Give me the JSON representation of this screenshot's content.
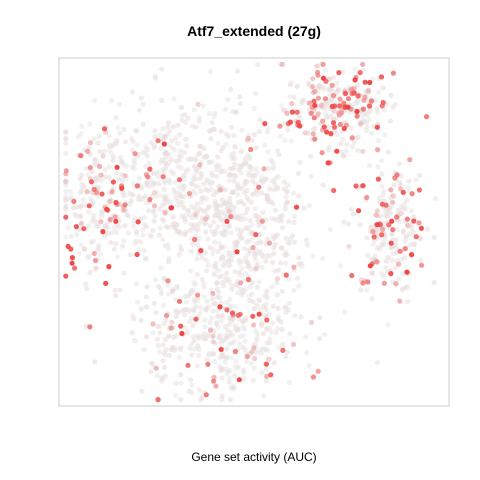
{
  "chart_data": {
    "type": "scatter",
    "title": "Atf7_extended (27g)",
    "xlabel": "Gene set activity (AUC)",
    "ylabel": "",
    "xlim": [
      0,
      100
    ],
    "ylim": [
      0,
      100
    ],
    "grid": false,
    "legend": "none",
    "axes_ticks": "none",
    "color_scale": {
      "low": "#e8e8e8",
      "high": "#f03a3a"
    },
    "cluster_summary": [
      {
        "region": "top-right",
        "center": [
          72,
          86
        ],
        "relative_activity": "highest"
      },
      {
        "region": "right",
        "center": [
          85,
          52
        ],
        "relative_activity": "high"
      },
      {
        "region": "left",
        "center": [
          10,
          60
        ],
        "relative_activity": "medium"
      },
      {
        "region": "center-left",
        "center": [
          30,
          62
        ],
        "relative_activity": "low"
      },
      {
        "region": "center",
        "center": [
          48,
          52
        ],
        "relative_activity": "low"
      },
      {
        "region": "bottom-center",
        "center": [
          40,
          20
        ],
        "relative_activity": "low-medium"
      }
    ]
  }
}
